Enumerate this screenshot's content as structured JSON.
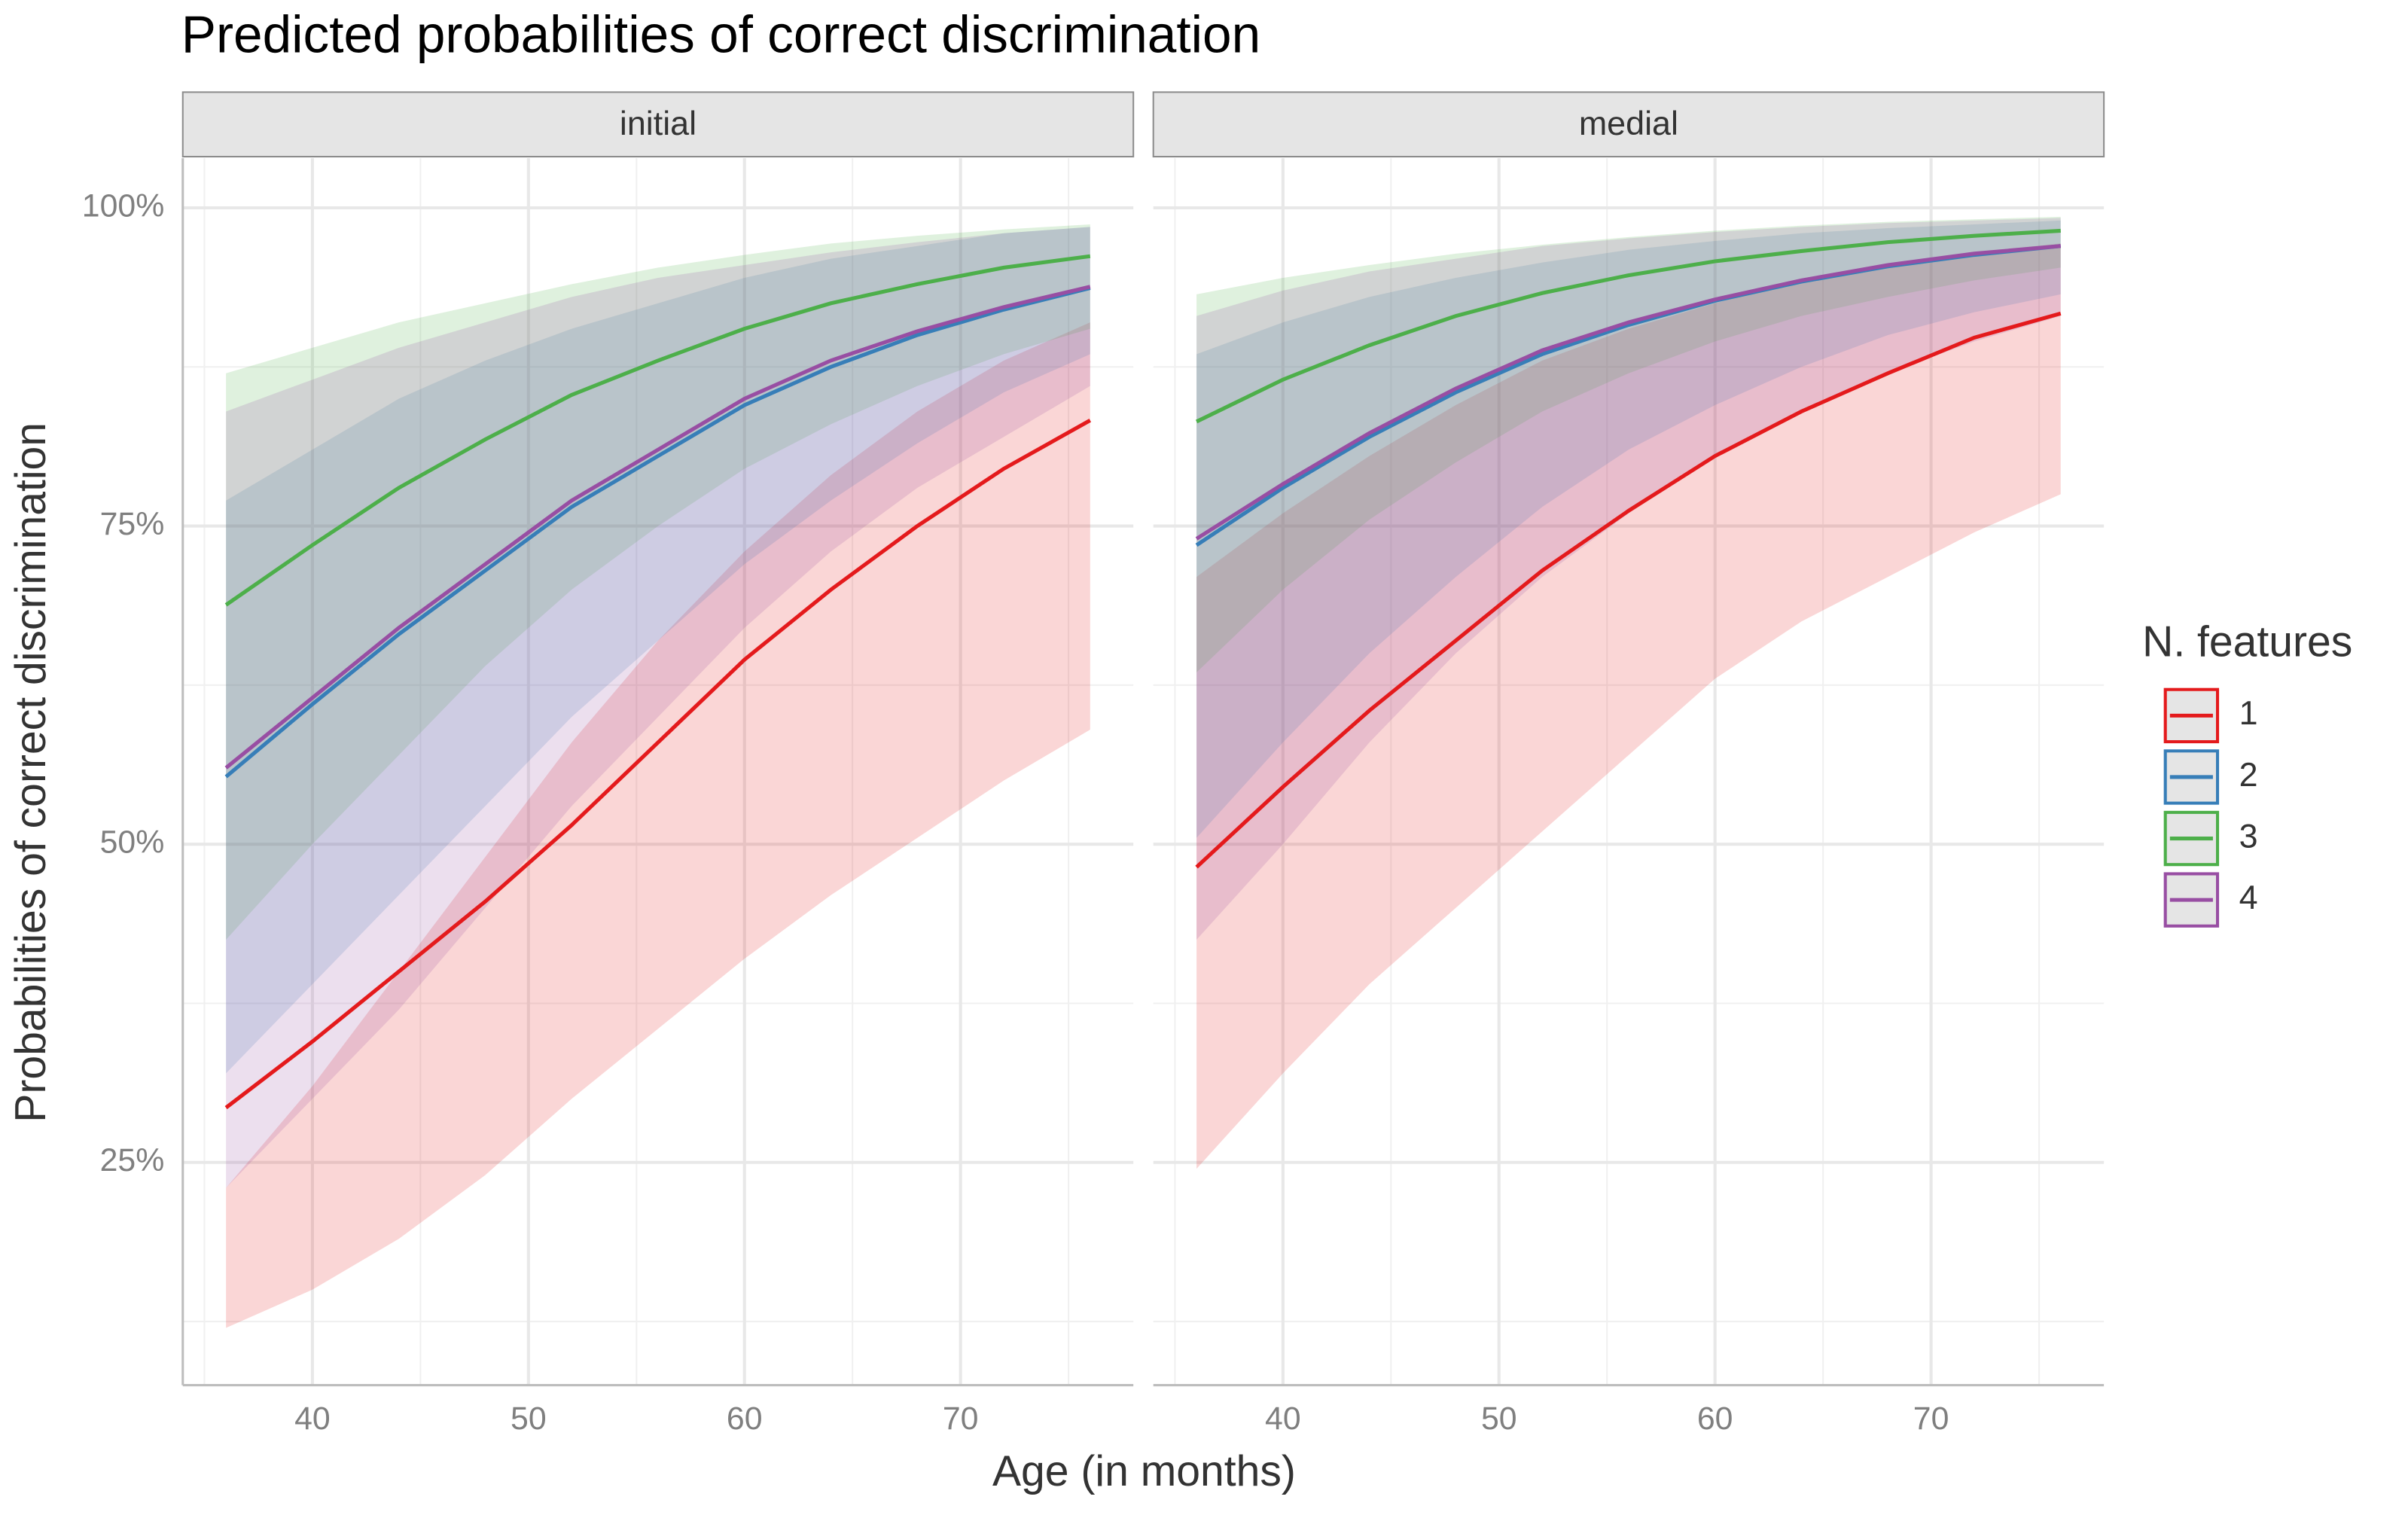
{
  "chart_data": {
    "type": "line",
    "title": "Predicted probabilities of correct discrimination",
    "x_label": "Age (in months)",
    "y_label": "Probabilities of correct discrimination",
    "legend_title": "N. features",
    "grid": true,
    "xlim": [
      34,
      78
    ],
    "ylim": [
      7.5,
      103.9
    ],
    "xticks": [
      40,
      50,
      60,
      70
    ],
    "xminorticks": [
      35,
      45,
      55,
      65,
      75
    ],
    "yticks": [
      {
        "value": 25,
        "label": "25%"
      },
      {
        "value": 50,
        "label": "50%"
      },
      {
        "value": 75,
        "label": "75%"
      },
      {
        "value": 100,
        "label": "100%"
      }
    ],
    "yminorticks": [
      12.5,
      37.5,
      62.5,
      87.5
    ],
    "x": [
      36,
      40,
      44,
      48,
      52,
      56,
      60,
      64,
      68,
      72,
      76
    ],
    "panels": [
      {
        "title": "initial",
        "series": [
          {
            "name": "1",
            "color": "#e41a1c",
            "values": [
              29.3,
              34.5,
              40,
              45.5,
              51.5,
              58,
              64.5,
              70,
              75,
              79.5,
              83.3
            ],
            "lower": [
              12,
              15,
              19,
              24,
              30,
              35.5,
              41,
              46,
              50.5,
              55,
              59
            ],
            "upper": [
              23,
              31,
              40,
              49,
              58,
              66,
              73,
              79,
              84,
              88,
              91
            ]
          },
          {
            "name": "2",
            "color": "#377eb8",
            "values": [
              55.3,
              61,
              66.5,
              71.5,
              76.5,
              80.5,
              84.5,
              87.5,
              90,
              92,
              93.7
            ],
            "lower": [
              32,
              39,
              46,
              53,
              60,
              66,
              72,
              77,
              81.5,
              85.5,
              88.5
            ],
            "upper": [
              77,
              81,
              85,
              88,
              90.5,
              92.5,
              94.5,
              96,
              97,
              98,
              98.5
            ]
          },
          {
            "name": "3",
            "color": "#4daf4a",
            "values": [
              68.8,
              73.5,
              78,
              81.8,
              85.3,
              88,
              90.5,
              92.5,
              94,
              95.3,
              96.2
            ],
            "lower": [
              42.5,
              50,
              57,
              64,
              70,
              75,
              79.5,
              83,
              86,
              88.5,
              90.5
            ],
            "upper": [
              87,
              89,
              91,
              92.5,
              94,
              95.3,
              96.3,
              97.2,
              97.8,
              98.3,
              98.7
            ]
          },
          {
            "name": "4",
            "color": "#984ea3",
            "values": [
              56,
              61.5,
              67,
              72,
              77,
              81,
              85,
              88,
              90.3,
              92.2,
              93.8
            ],
            "lower": [
              23,
              30,
              37,
              45,
              53,
              60,
              67,
              73,
              78,
              82,
              86
            ],
            "upper": [
              84,
              86.5,
              89,
              91,
              93,
              94.5,
              95.5,
              96.5,
              97.3,
              98,
              98.5
            ]
          }
        ]
      },
      {
        "title": "medial",
        "series": [
          {
            "name": "1",
            "color": "#e41a1c",
            "values": [
              48.2,
              54.5,
              60.5,
              66,
              71.5,
              76.2,
              80.5,
              84,
              87,
              89.8,
              91.7
            ],
            "lower": [
              24.5,
              32,
              39,
              45,
              51,
              57,
              63,
              67.5,
              71,
              74.5,
              77.5
            ],
            "upper": [
              71,
              76,
              80.5,
              84.5,
              88,
              90.5,
              92.5,
              94.3,
              95.5,
              96.5,
              97.2
            ]
          },
          {
            "name": "2",
            "color": "#377eb8",
            "values": [
              73.5,
              78,
              82,
              85.5,
              88.5,
              90.8,
              92.7,
              94.2,
              95.4,
              96.3,
              97
            ],
            "lower": [
              50.5,
              58,
              65,
              71,
              76.5,
              81,
              84.5,
              87.5,
              90,
              91.8,
              93.2
            ],
            "upper": [
              88.5,
              91,
              93,
              94.5,
              95.7,
              96.7,
              97.4,
              98,
              98.4,
              98.7,
              99
            ]
          },
          {
            "name": "3",
            "color": "#4daf4a",
            "values": [
              83.2,
              86.5,
              89.2,
              91.5,
              93.3,
              94.7,
              95.8,
              96.6,
              97.3,
              97.8,
              98.2
            ],
            "lower": [
              63.5,
              70,
              75.5,
              80,
              84,
              87,
              89.5,
              91.5,
              93,
              94.3,
              95.3
            ],
            "upper": [
              93.2,
              94.5,
              95.5,
              96.4,
              97.1,
              97.7,
              98.2,
              98.6,
              98.9,
              99.1,
              99.3
            ]
          },
          {
            "name": "4",
            "color": "#984ea3",
            "values": [
              74,
              78.3,
              82.3,
              85.8,
              88.8,
              91,
              92.8,
              94.3,
              95.5,
              96.4,
              97
            ],
            "lower": [
              42.5,
              50,
              58,
              65,
              71,
              76,
              80.5,
              84,
              87,
              89.5,
              91.5
            ],
            "upper": [
              91.5,
              93.5,
              95,
              96,
              97,
              97.6,
              98.1,
              98.5,
              98.8,
              99,
              99.2
            ]
          }
        ]
      }
    ]
  }
}
